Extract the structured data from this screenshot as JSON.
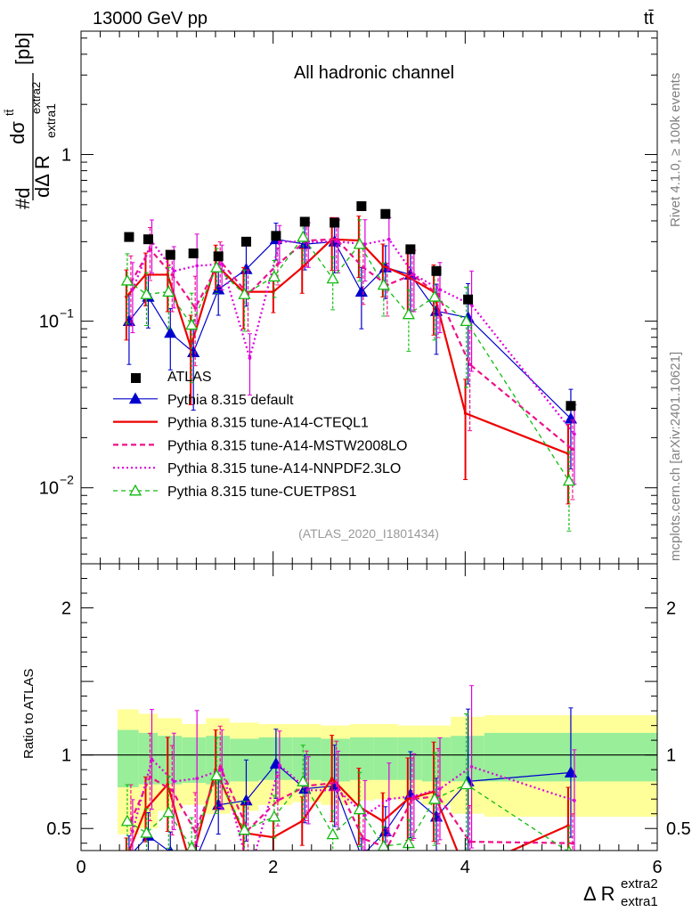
{
  "header": {
    "left": "13000 GeV pp",
    "right": "tt̄"
  },
  "side_labels": {
    "rivet": "Rivet 4.1.0, ≥ 100k events",
    "mcplots": "mcplots.cern.ch [arXiv:2401.10621]"
  },
  "colors": {
    "data": "#000000",
    "default": "#0000cc",
    "cteql1": "#ee0000",
    "mstw": "#ee1188",
    "nnpdf": "#dd00dd",
    "cuetp8s1": "#11bb11",
    "band_inner": "#99ee99",
    "band_outer": "#ffff99"
  },
  "chart_data": [
    {
      "type": "line",
      "title": "All hadronic channel",
      "analysis_tag": "(ATLAS_2020_I1801434)",
      "xlabel": "Δ R",
      "xlabel_sup": "extra2",
      "xlabel_sub": "extra1",
      "ylabel": "#d dσ^tt̄ / dΔ R_extra1^extra2 [pb]",
      "ylabel_parts": {
        "num": "dσ",
        "num_sup": "tt̄",
        "den": "dΔ R",
        "den_sub": "extra1",
        "den_sup": "extra2",
        "prefix": "#d",
        "unit": "[pb]"
      },
      "yscale": "log",
      "xlim": [
        0,
        6
      ],
      "ylim": [
        0.0035,
        5.5
      ],
      "y_tick_labels": [
        {
          "value": 0.01,
          "base": "10",
          "exp": "−2"
        },
        {
          "value": 0.1,
          "base": "10",
          "exp": "−1"
        },
        {
          "value": 1,
          "base": "1",
          "exp": ""
        }
      ],
      "x": [
        0.5,
        0.7,
        0.93,
        1.17,
        1.43,
        1.72,
        2.03,
        2.33,
        2.64,
        2.92,
        3.17,
        3.43,
        3.7,
        4.03,
        5.1
      ],
      "series": [
        {
          "name": "ATLAS",
          "key": "data",
          "style": "marker-square",
          "values": [
            0.32,
            0.31,
            0.25,
            0.255,
            0.245,
            0.3,
            0.325,
            0.395,
            0.39,
            0.49,
            0.44,
            0.27,
            0.2,
            0.135,
            0.031
          ]
        },
        {
          "name": "Pythia 8.315 default",
          "key": "default",
          "style": "solid-triangle",
          "values": [
            0.1,
            0.14,
            0.085,
            0.065,
            0.155,
            0.205,
            0.31,
            0.29,
            0.3,
            0.15,
            0.21,
            0.19,
            0.115,
            0.105,
            0.026
          ]
        },
        {
          "name": "Pythia 8.315 tune-A14-CTEQL1",
          "key": "cteql1",
          "style": "solid",
          "values": [
            0.14,
            0.19,
            0.19,
            0.07,
            0.22,
            0.15,
            0.15,
            0.21,
            0.31,
            0.305,
            0.215,
            0.185,
            0.15,
            0.028,
            0.016
          ]
        },
        {
          "name": "Pythia 8.315 tune-A14-MSTW2008LO",
          "key": "mstw",
          "style": "dashed",
          "values": [
            0.17,
            0.27,
            0.19,
            0.12,
            0.23,
            0.145,
            0.22,
            0.305,
            0.31,
            0.21,
            0.165,
            0.19,
            0.145,
            0.055,
            0.017
          ]
        },
        {
          "name": "Pythia 8.315 tune-A14-NNPDF2.3LO",
          "key": "nnpdf",
          "style": "dotted",
          "values": [
            0.155,
            0.3,
            0.2,
            0.215,
            0.22,
            0.06,
            0.3,
            0.3,
            0.3,
            0.29,
            0.31,
            0.19,
            0.155,
            0.125,
            0.021
          ]
        },
        {
          "name": "Pythia 8.315 tune-CUETP8S1",
          "key": "cuetp8s1",
          "style": "dashed-open-triangle",
          "values": [
            0.175,
            0.145,
            0.15,
            0.095,
            0.21,
            0.145,
            0.185,
            0.32,
            0.18,
            0.29,
            0.165,
            0.11,
            0.14,
            0.1,
            0.011
          ]
        }
      ]
    },
    {
      "type": "line",
      "ylabel": "Ratio to ATLAS",
      "xlabel": "Δ R",
      "xlim": [
        0,
        6
      ],
      "ylim": [
        0.35,
        2.3
      ],
      "y_tick_labels": [
        {
          "value": 0.5,
          "label": "0.5"
        },
        {
          "value": 1,
          "label": "1"
        },
        {
          "value": 2,
          "label": "2"
        }
      ],
      "x_tick_labels": [
        {
          "value": 0,
          "label": "0"
        },
        {
          "value": 2,
          "label": "2"
        },
        {
          "value": 4,
          "label": "4"
        },
        {
          "value": 6,
          "label": "6"
        }
      ],
      "band_edges": [
        0.38,
        0.6,
        0.8,
        1.05,
        1.3,
        1.55,
        1.85,
        2.2,
        2.5,
        2.8,
        3.05,
        3.3,
        3.55,
        3.85,
        4.2,
        6.0
      ],
      "band_inner_upper": [
        1.17,
        1.15,
        1.13,
        1.12,
        1.13,
        1.11,
        1.12,
        1.12,
        1.11,
        1.12,
        1.12,
        1.12,
        1.12,
        1.13,
        1.15
      ],
      "band_inner_lower": [
        0.78,
        0.8,
        0.8,
        0.81,
        0.8,
        0.82,
        0.83,
        0.83,
        0.82,
        0.83,
        0.83,
        0.83,
        0.82,
        0.82,
        0.82
      ],
      "band_outer_upper": [
        1.31,
        1.28,
        1.25,
        1.21,
        1.25,
        1.22,
        1.21,
        1.21,
        1.2,
        1.21,
        1.21,
        1.2,
        1.2,
        1.26,
        1.27
      ],
      "band_outer_lower": [
        0.46,
        0.5,
        0.62,
        0.66,
        0.6,
        0.62,
        0.66,
        0.68,
        0.66,
        0.69,
        0.7,
        0.69,
        0.66,
        0.6,
        0.58
      ],
      "x": [
        0.5,
        0.7,
        0.93,
        1.17,
        1.43,
        1.72,
        2.03,
        2.33,
        2.64,
        2.92,
        3.17,
        3.43,
        3.7,
        4.03,
        5.1
      ],
      "series": [
        {
          "name": "Pythia 8.315 default",
          "key": "default",
          "style": "solid-triangle",
          "values": [
            0.31,
            0.45,
            0.34,
            0.25,
            0.66,
            0.69,
            0.94,
            0.77,
            0.79,
            0.31,
            0.48,
            0.73,
            0.58,
            0.82,
            0.88
          ]
        },
        {
          "name": "Pythia 8.315 tune-A14-CTEQL1",
          "key": "cteql1",
          "style": "solid",
          "values": [
            0.3,
            0.63,
            0.8,
            0.25,
            0.9,
            0.47,
            0.44,
            0.55,
            0.84,
            0.65,
            0.55,
            0.7,
            0.75,
            0.21,
            0.52
          ]
        },
        {
          "name": "Pythia 8.315 tune-A14-MSTW2008LO",
          "key": "mstw",
          "style": "dashed",
          "values": [
            0.55,
            0.85,
            0.76,
            0.48,
            0.92,
            0.49,
            0.69,
            0.79,
            0.81,
            0.43,
            0.37,
            0.7,
            0.72,
            0.41,
            0.4
          ]
        },
        {
          "name": "Pythia 8.315 tune-A14-NNPDF2.3LO",
          "key": "nnpdf",
          "style": "dotted",
          "values": [
            0.48,
            0.97,
            0.82,
            0.84,
            0.9,
            0.2,
            0.93,
            0.76,
            0.76,
            0.59,
            0.7,
            0.72,
            0.77,
            0.92,
            0.69
          ]
        },
        {
          "name": "Pythia 8.315 tune-CUETP8S1",
          "key": "cuetp8s1",
          "style": "dashed-open-triangle",
          "values": [
            0.55,
            0.47,
            0.61,
            0.37,
            0.86,
            0.49,
            0.58,
            0.82,
            0.46,
            0.63,
            0.38,
            0.4,
            0.7,
            0.8,
            0.34
          ]
        }
      ]
    }
  ]
}
